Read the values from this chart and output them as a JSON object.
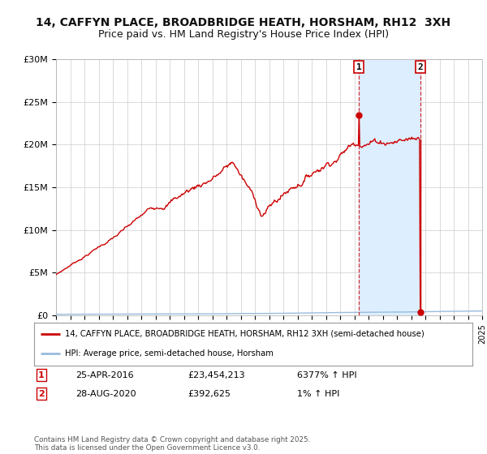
{
  "title": "14, CAFFYN PLACE, BROADBRIDGE HEATH, HORSHAM, RH12  3XH",
  "subtitle": "Price paid vs. HM Land Registry's House Price Index (HPI)",
  "ylim": [
    0,
    30000000
  ],
  "yticks": [
    0,
    5000000,
    10000000,
    15000000,
    20000000,
    25000000,
    30000000
  ],
  "ytick_labels": [
    "£0",
    "£5M",
    "£10M",
    "£15M",
    "£20M",
    "£25M",
    "£30M"
  ],
  "xmin": 1995,
  "xmax": 2025,
  "vline1_x": 2016.32,
  "vline2_x": 2020.66,
  "marker1_x": 2016.32,
  "marker1_y": 23454213,
  "marker2_x": 2020.66,
  "marker2_y": 392625,
  "line1_color": "#cc0000",
  "line2_color": "#99bbdd",
  "shade_color": "#ddeeff",
  "background_color": "#ffffff",
  "plot_bg_color": "#ffffff",
  "legend_label1": "14, CAFFYN PLACE, BROADBRIDGE HEATH, HORSHAM, RH12 3XH (semi-detached house)",
  "legend_label2": "HPI: Average price, semi-detached house, Horsham",
  "table_row1_num": "1",
  "table_row1_date": "25-APR-2016",
  "table_row1_price": "£23,454,213",
  "table_row1_hpi": "6377% ↑ HPI",
  "table_row2_num": "2",
  "table_row2_date": "28-AUG-2020",
  "table_row2_price": "£392,625",
  "table_row2_hpi": "1% ↑ HPI",
  "footer": "Contains HM Land Registry data © Crown copyright and database right 2025.\nThis data is licensed under the Open Government Licence v3.0.",
  "title_fontsize": 10,
  "subtitle_fontsize": 9
}
